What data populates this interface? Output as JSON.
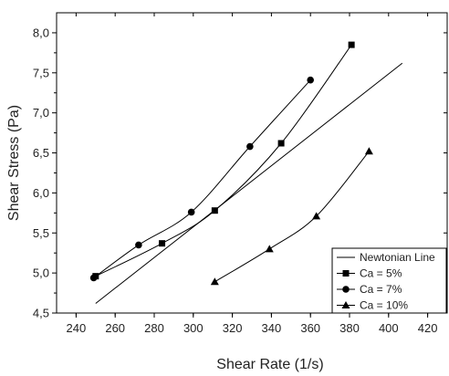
{
  "chart_data": {
    "type": "line",
    "xlabel": "Shear Rate (1/s)",
    "ylabel": "Shear Stress (Pa)",
    "xlim": [
      230,
      430
    ],
    "ylim": [
      4.5,
      8.25
    ],
    "x_ticks": [
      240,
      260,
      280,
      300,
      320,
      340,
      360,
      380,
      400,
      420
    ],
    "x_tick_labels": [
      "240",
      "260",
      "280",
      "300",
      "320",
      "340",
      "360",
      "380",
      "400",
      "420"
    ],
    "y_ticks": [
      4.5,
      5.0,
      5.5,
      6.0,
      6.5,
      7.0,
      7.5,
      8.0
    ],
    "y_tick_labels": [
      "4,5",
      "5,0",
      "5,5",
      "6,0",
      "6,5",
      "7,0",
      "7,5",
      "8,0"
    ],
    "grid": false,
    "legend_position": "bottom-right",
    "series": [
      {
        "name": "Newtonian Line",
        "marker": "none",
        "x": [
          250,
          407
        ],
        "y": [
          4.62,
          7.62
        ]
      },
      {
        "name": "Ca = 5%",
        "marker": "square",
        "x": [
          250,
          284,
          311,
          345,
          381
        ],
        "y": [
          4.96,
          5.37,
          5.78,
          6.62,
          7.85
        ]
      },
      {
        "name": "Ca = 7%",
        "marker": "circle",
        "x": [
          249,
          272,
          299,
          329,
          360
        ],
        "y": [
          4.94,
          5.35,
          5.76,
          6.58,
          7.41
        ]
      },
      {
        "name": "Ca = 10%",
        "marker": "triangle",
        "x": [
          311,
          339,
          363,
          390
        ],
        "y": [
          4.89,
          5.3,
          5.71,
          6.52
        ]
      }
    ]
  }
}
